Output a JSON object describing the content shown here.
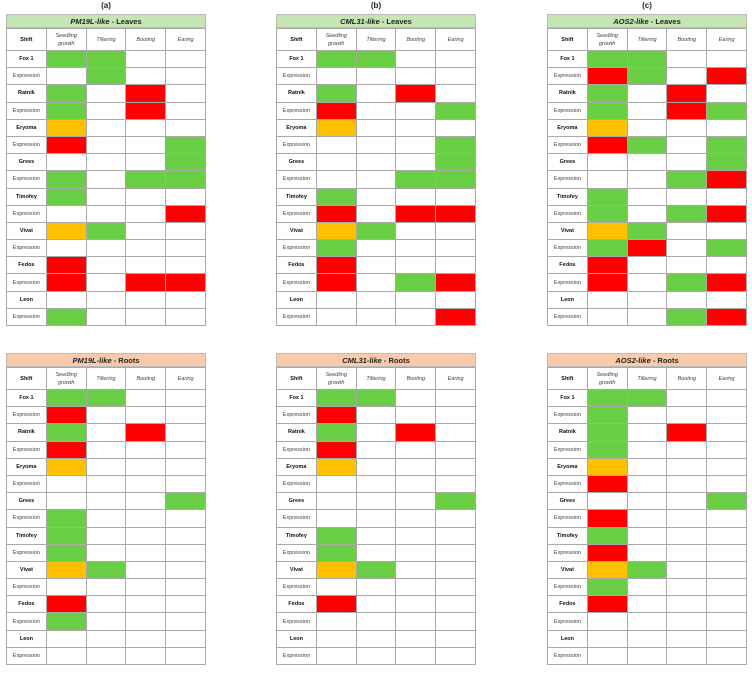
{
  "chart_data": {
    "type": "table",
    "legend_colors": {
      "G": "#6acf45",
      "R": "#ff0000",
      "Y": "#ffc000",
      "": "#ffffff"
    },
    "columns": [
      "Shift",
      "Seedling growth",
      "Tillering",
      "Booting",
      "Earing"
    ],
    "row_labels": [
      "Fox 1",
      "Expression",
      "Ratnik",
      "Expression",
      "Eryoma",
      "Expression",
      "Grees",
      "Expression",
      "Timofey",
      "Expression",
      "Vivat",
      "Expression",
      "Fedos",
      "Expression",
      "Leon",
      "Expression"
    ],
    "panels": [
      {
        "label": "(a)",
        "gene": "PM19L-like",
        "tissue": " - Leaves",
        "cells": [
          [
            "G",
            "G",
            "",
            ""
          ],
          [
            "",
            "G",
            "",
            ""
          ],
          [
            "G",
            "",
            "R",
            ""
          ],
          [
            "G",
            "",
            "R",
            ""
          ],
          [
            "Y",
            "",
            "",
            ""
          ],
          [
            "R",
            "",
            "",
            "G"
          ],
          [
            "",
            "",
            "",
            "G"
          ],
          [
            "G",
            "",
            "G",
            "G"
          ],
          [
            "G",
            "",
            "",
            ""
          ],
          [
            "",
            "",
            "",
            "R"
          ],
          [
            "Y",
            "G",
            "",
            ""
          ],
          [
            "",
            "",
            "",
            ""
          ],
          [
            "R",
            "",
            "",
            ""
          ],
          [
            "R",
            "",
            "R",
            "R"
          ],
          [
            "",
            "",
            "",
            ""
          ],
          [
            "G",
            "",
            "",
            ""
          ]
        ]
      },
      {
        "label": "(b)",
        "gene": "CML31-like",
        "tissue": " - Leaves",
        "cells": [
          [
            "G",
            "G",
            "",
            ""
          ],
          [
            "",
            "",
            "",
            ""
          ],
          [
            "G",
            "",
            "R",
            ""
          ],
          [
            "R",
            "",
            "",
            "G"
          ],
          [
            "Y",
            "",
            "",
            ""
          ],
          [
            "",
            "",
            "",
            "G"
          ],
          [
            "",
            "",
            "",
            "G"
          ],
          [
            "",
            "",
            "G",
            "G"
          ],
          [
            "G",
            "",
            "",
            ""
          ],
          [
            "R",
            "",
            "R",
            "R"
          ],
          [
            "Y",
            "G",
            "",
            ""
          ],
          [
            "G",
            "",
            "",
            ""
          ],
          [
            "R",
            "",
            "",
            ""
          ],
          [
            "R",
            "",
            "G",
            "R"
          ],
          [
            "",
            "",
            "",
            ""
          ],
          [
            "",
            "",
            "",
            "R"
          ]
        ]
      },
      {
        "label": "(c)",
        "gene": "AOS2-like",
        "tissue": " - Leaves",
        "cells": [
          [
            "G",
            "G",
            "",
            ""
          ],
          [
            "R",
            "G",
            "",
            "R"
          ],
          [
            "G",
            "",
            "R",
            ""
          ],
          [
            "G",
            "",
            "R",
            "G"
          ],
          [
            "Y",
            "",
            "",
            ""
          ],
          [
            "R",
            "G",
            "",
            "G"
          ],
          [
            "",
            "",
            "",
            "G"
          ],
          [
            "",
            "",
            "G",
            "R"
          ],
          [
            "G",
            "",
            "",
            ""
          ],
          [
            "G",
            "",
            "G",
            "R"
          ],
          [
            "Y",
            "G",
            "",
            ""
          ],
          [
            "G",
            "R",
            "",
            "G"
          ],
          [
            "R",
            "",
            "",
            ""
          ],
          [
            "R",
            "",
            "G",
            "R"
          ],
          [
            "",
            "",
            "",
            ""
          ],
          [
            "",
            "",
            "G",
            "R"
          ]
        ]
      },
      {
        "label": "",
        "gene": "PM19L-like",
        "tissue": " - Roots",
        "cells": [
          [
            "G",
            "G",
            "",
            ""
          ],
          [
            "R",
            "",
            "",
            ""
          ],
          [
            "G",
            "",
            "R",
            ""
          ],
          [
            "R",
            "",
            "",
            ""
          ],
          [
            "Y",
            "",
            "",
            ""
          ],
          [
            "",
            "",
            "",
            ""
          ],
          [
            "",
            "",
            "",
            "G"
          ],
          [
            "G",
            "",
            "",
            ""
          ],
          [
            "G",
            "",
            "",
            ""
          ],
          [
            "G",
            "",
            "",
            ""
          ],
          [
            "Y",
            "G",
            "",
            ""
          ],
          [
            "",
            "",
            "",
            ""
          ],
          [
            "R",
            "",
            "",
            ""
          ],
          [
            "G",
            "",
            "",
            ""
          ],
          [
            "",
            "",
            "",
            ""
          ],
          [
            "",
            "",
            "",
            ""
          ]
        ]
      },
      {
        "label": "",
        "gene": "CML31-like",
        "tissue": " - Roots",
        "cells": [
          [
            "G",
            "G",
            "",
            ""
          ],
          [
            "R",
            "",
            "",
            ""
          ],
          [
            "G",
            "",
            "R",
            ""
          ],
          [
            "R",
            "",
            "",
            ""
          ],
          [
            "Y",
            "",
            "",
            ""
          ],
          [
            "",
            "",
            "",
            ""
          ],
          [
            "",
            "",
            "",
            "G"
          ],
          [
            "",
            "",
            "",
            ""
          ],
          [
            "G",
            "",
            "",
            ""
          ],
          [
            "G",
            "",
            "",
            ""
          ],
          [
            "Y",
            "G",
            "",
            ""
          ],
          [
            "",
            "",
            "",
            ""
          ],
          [
            "R",
            "",
            "",
            ""
          ],
          [
            "",
            "",
            "",
            ""
          ],
          [
            "",
            "",
            "",
            ""
          ],
          [
            "",
            "",
            "",
            ""
          ]
        ]
      },
      {
        "label": "",
        "gene": "AOS2-like",
        "tissue": " - Roots",
        "cells": [
          [
            "G",
            "G",
            "",
            ""
          ],
          [
            "G",
            "",
            "",
            ""
          ],
          [
            "G",
            "",
            "R",
            ""
          ],
          [
            "G",
            "",
            "",
            ""
          ],
          [
            "Y",
            "",
            "",
            ""
          ],
          [
            "R",
            "",
            "",
            ""
          ],
          [
            "",
            "",
            "",
            "G"
          ],
          [
            "R",
            "",
            "",
            ""
          ],
          [
            "G",
            "",
            "",
            ""
          ],
          [
            "R",
            "",
            "",
            ""
          ],
          [
            "Y",
            "G",
            "",
            ""
          ],
          [
            "G",
            "",
            "",
            ""
          ],
          [
            "R",
            "",
            "",
            ""
          ],
          [
            "",
            "",
            "",
            ""
          ],
          [
            "",
            "",
            "",
            ""
          ],
          [
            "",
            "",
            "",
            ""
          ]
        ]
      }
    ]
  }
}
